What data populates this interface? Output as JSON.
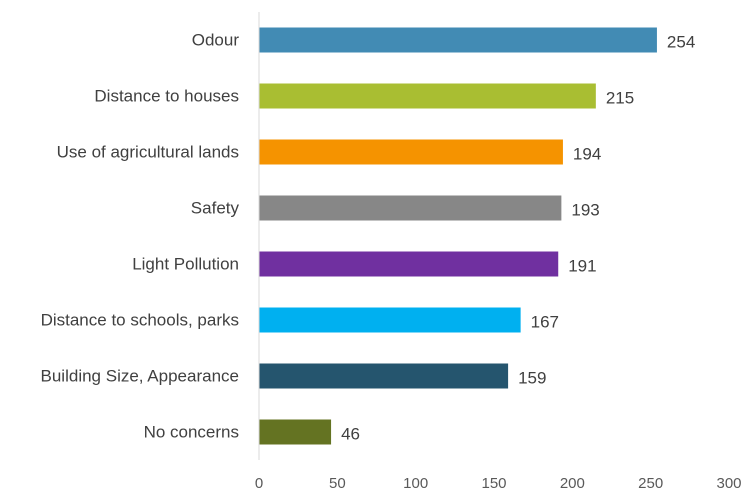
{
  "chart_data": {
    "type": "bar",
    "orientation": "horizontal",
    "title": "",
    "xlabel": "",
    "ylabel": "",
    "xlim": [
      0,
      300
    ],
    "x_ticks": [
      "0",
      "50",
      "100",
      "150",
      "200",
      "250",
      "300"
    ],
    "grid": false,
    "data_labels": true,
    "categories": [
      "Odour",
      "Distance to houses",
      "Use of agricultural lands",
      "Safety",
      "Light Pollution",
      "Distance to schools, parks",
      "Building Size, Appearance",
      "No concerns"
    ],
    "values": [
      254,
      215,
      194,
      193,
      191,
      167,
      159,
      46
    ],
    "colors": [
      "#428bb4",
      "#a9be32",
      "#f59300",
      "#878787",
      "#7030a0",
      "#00b0f0",
      "#25556e",
      "#647322"
    ]
  }
}
